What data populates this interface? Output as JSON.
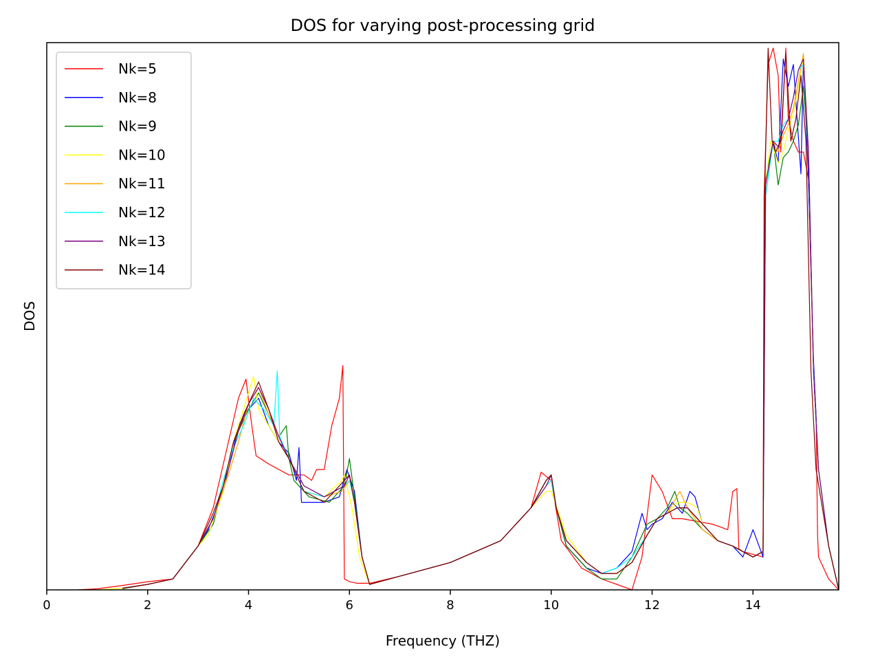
{
  "chart_data": {
    "type": "line",
    "title": "DOS for varying post-processing grid",
    "xlabel": "Frequency (THZ)",
    "ylabel": "DOS",
    "xlim": [
      0,
      15.7
    ],
    "ylim": [
      0,
      1.0
    ],
    "y_ticks_shown": false,
    "x_ticks": [
      {
        "value": 0,
        "label": "0"
      },
      {
        "value": 2,
        "label": "2"
      },
      {
        "value": 4,
        "label": "4"
      },
      {
        "value": 6,
        "label": "6"
      },
      {
        "value": 8,
        "label": "8"
      },
      {
        "value": 10,
        "label": "10"
      },
      {
        "value": 12,
        "label": "12"
      },
      {
        "value": 14,
        "label": "14"
      }
    ],
    "legend_position": "upper-left",
    "series": [
      {
        "name": "Nk=5",
        "color": "#ff0000",
        "x": [
          0.6,
          1.0,
          1.5,
          2.0,
          2.5,
          3.0,
          3.3,
          3.6,
          3.8,
          3.95,
          4.05,
          4.15,
          4.4,
          4.8,
          5.1,
          5.25,
          5.35,
          5.5,
          5.65,
          5.8,
          5.87,
          5.9,
          6.0,
          6.15,
          6.4,
          7.0,
          8.0,
          9.0,
          9.6,
          9.8,
          10.0,
          10.2,
          10.6,
          11.0,
          11.3,
          11.6,
          11.8,
          12.0,
          12.2,
          12.4,
          12.6,
          12.9,
          13.2,
          13.5,
          13.6,
          13.68,
          13.72,
          13.8,
          14.0,
          14.2,
          14.22,
          14.3,
          14.4,
          14.5,
          14.55,
          14.65,
          14.7,
          14.8,
          14.9,
          15.0,
          15.1,
          15.2,
          15.25,
          15.28,
          15.3,
          15.5,
          15.7
        ],
        "y": [
          0.0,
          0.002,
          0.008,
          0.015,
          0.02,
          0.08,
          0.15,
          0.27,
          0.35,
          0.385,
          0.31,
          0.245,
          0.23,
          0.21,
          0.21,
          0.2,
          0.22,
          0.22,
          0.3,
          0.35,
          0.41,
          0.02,
          0.015,
          0.012,
          0.012,
          0.025,
          0.05,
          0.09,
          0.15,
          0.215,
          0.2,
          0.09,
          0.04,
          0.02,
          0.01,
          0.0,
          0.06,
          0.21,
          0.18,
          0.13,
          0.13,
          0.125,
          0.12,
          0.11,
          0.18,
          0.185,
          0.075,
          0.07,
          0.065,
          0.06,
          0.72,
          0.96,
          0.99,
          0.94,
          0.8,
          0.99,
          0.86,
          0.82,
          0.8,
          0.8,
          0.75,
          0.4,
          0.32,
          0.1,
          0.06,
          0.02,
          0.0
        ]
      },
      {
        "name": "Nk=8",
        "color": "#0000ff",
        "x": [
          1.5,
          2.0,
          2.5,
          3.0,
          3.2,
          3.5,
          3.7,
          3.8,
          4.0,
          4.2,
          4.4,
          4.6,
          4.8,
          4.95,
          5.0,
          5.05,
          5.2,
          5.5,
          5.8,
          5.95,
          6.1,
          6.25,
          6.4,
          7.0,
          8.0,
          9.0,
          9.6,
          9.9,
          10.0,
          10.1,
          10.3,
          10.7,
          11.0,
          11.3,
          11.6,
          11.8,
          11.9,
          12.0,
          12.2,
          12.4,
          12.6,
          12.75,
          12.85,
          13.0,
          13.3,
          13.6,
          13.8,
          14.0,
          14.2,
          14.25,
          14.4,
          14.5,
          14.6,
          14.7,
          14.8,
          14.95,
          15.0,
          15.1,
          15.2,
          15.3,
          15.5,
          15.7
        ],
        "y": [
          0.003,
          0.01,
          0.02,
          0.08,
          0.11,
          0.18,
          0.26,
          0.3,
          0.33,
          0.35,
          0.3,
          0.27,
          0.25,
          0.2,
          0.26,
          0.16,
          0.16,
          0.16,
          0.17,
          0.22,
          0.18,
          0.06,
          0.01,
          0.025,
          0.05,
          0.09,
          0.15,
          0.2,
          0.21,
          0.15,
          0.08,
          0.04,
          0.03,
          0.04,
          0.07,
          0.14,
          0.11,
          0.12,
          0.13,
          0.16,
          0.14,
          0.18,
          0.17,
          0.12,
          0.09,
          0.08,
          0.06,
          0.11,
          0.06,
          0.72,
          0.82,
          0.78,
          0.97,
          0.92,
          0.96,
          0.76,
          0.97,
          0.75,
          0.42,
          0.22,
          0.08,
          0.0
        ]
      },
      {
        "name": "Nk=9",
        "color": "#008000",
        "x": [
          1.5,
          2.0,
          2.5,
          3.0,
          3.3,
          3.5,
          3.7,
          4.0,
          4.2,
          4.4,
          4.6,
          4.75,
          4.8,
          4.9,
          5.2,
          5.6,
          5.9,
          6.0,
          6.1,
          6.25,
          6.4,
          7.0,
          8.0,
          9.0,
          9.6,
          9.9,
          10.0,
          10.1,
          10.3,
          10.7,
          11.0,
          11.3,
          11.6,
          11.9,
          12.1,
          12.3,
          12.45,
          12.55,
          12.7,
          13.0,
          13.3,
          13.6,
          13.8,
          14.0,
          14.2,
          14.25,
          14.4,
          14.5,
          14.6,
          14.7,
          14.8,
          14.9,
          15.0,
          15.1,
          15.2,
          15.3,
          15.5,
          15.7
        ],
        "y": [
          0.002,
          0.01,
          0.02,
          0.08,
          0.12,
          0.19,
          0.27,
          0.33,
          0.36,
          0.32,
          0.28,
          0.3,
          0.24,
          0.2,
          0.17,
          0.16,
          0.19,
          0.24,
          0.17,
          0.06,
          0.01,
          0.025,
          0.05,
          0.09,
          0.15,
          0.2,
          0.21,
          0.15,
          0.08,
          0.04,
          0.02,
          0.02,
          0.06,
          0.12,
          0.13,
          0.15,
          0.18,
          0.15,
          0.14,
          0.11,
          0.09,
          0.08,
          0.07,
          0.06,
          0.07,
          0.75,
          0.82,
          0.74,
          0.79,
          0.8,
          0.82,
          0.85,
          0.92,
          0.8,
          0.4,
          0.22,
          0.08,
          0.0
        ]
      },
      {
        "name": "Nk=10",
        "color": "#ffff00",
        "x": [
          1.0,
          1.5,
          2.0,
          2.5,
          3.0,
          3.2,
          3.5,
          3.7,
          4.0,
          4.1,
          4.2,
          4.4,
          4.6,
          4.8,
          5.1,
          5.5,
          5.85,
          5.9,
          6.05,
          6.2,
          6.4,
          7.0,
          8.0,
          9.0,
          9.6,
          9.9,
          10.0,
          10.15,
          10.3,
          10.7,
          11.0,
          11.3,
          11.6,
          11.9,
          12.1,
          12.3,
          12.5,
          12.7,
          12.9,
          13.0,
          13.3,
          13.6,
          13.8,
          14.0,
          14.2,
          14.25,
          14.35,
          14.5,
          14.6,
          14.7,
          14.8,
          14.9,
          15.0,
          15.1,
          15.2,
          15.3,
          15.5,
          15.7
        ],
        "y": [
          0.0,
          0.003,
          0.01,
          0.02,
          0.08,
          0.1,
          0.18,
          0.27,
          0.36,
          0.39,
          0.33,
          0.3,
          0.27,
          0.24,
          0.18,
          0.17,
          0.2,
          0.21,
          0.15,
          0.06,
          0.01,
          0.025,
          0.05,
          0.09,
          0.15,
          0.18,
          0.18,
          0.14,
          0.1,
          0.05,
          0.03,
          0.03,
          0.05,
          0.1,
          0.13,
          0.14,
          0.16,
          0.16,
          0.15,
          0.12,
          0.09,
          0.08,
          0.07,
          0.06,
          0.07,
          0.74,
          0.82,
          0.78,
          0.8,
          0.84,
          0.87,
          0.92,
          0.97,
          0.8,
          0.4,
          0.22,
          0.08,
          0.0
        ]
      },
      {
        "name": "Nk=11",
        "color": "#ffa500",
        "x": [
          1.5,
          2.0,
          2.5,
          3.0,
          3.3,
          3.45,
          3.6,
          3.8,
          4.0,
          4.2,
          4.4,
          4.6,
          4.8,
          5.1,
          5.5,
          5.85,
          6.0,
          6.1,
          6.25,
          6.4,
          7.0,
          8.0,
          9.0,
          9.6,
          9.9,
          10.0,
          10.1,
          10.3,
          10.7,
          11.0,
          11.3,
          11.6,
          11.9,
          12.1,
          12.3,
          12.55,
          12.7,
          13.0,
          13.3,
          13.6,
          13.8,
          14.0,
          14.2,
          14.25,
          14.4,
          14.5,
          14.6,
          14.7,
          14.8,
          14.9,
          15.0,
          15.1,
          15.2,
          15.3,
          15.5,
          15.7
        ],
        "y": [
          0.003,
          0.01,
          0.02,
          0.08,
          0.13,
          0.17,
          0.21,
          0.27,
          0.34,
          0.37,
          0.32,
          0.28,
          0.24,
          0.18,
          0.17,
          0.18,
          0.2,
          0.16,
          0.06,
          0.01,
          0.025,
          0.05,
          0.09,
          0.15,
          0.19,
          0.2,
          0.15,
          0.09,
          0.05,
          0.03,
          0.03,
          0.05,
          0.1,
          0.13,
          0.14,
          0.18,
          0.15,
          0.11,
          0.09,
          0.08,
          0.07,
          0.06,
          0.07,
          0.74,
          0.82,
          0.8,
          0.83,
          0.85,
          0.88,
          0.93,
          0.98,
          0.8,
          0.4,
          0.22,
          0.08,
          0.0
        ]
      },
      {
        "name": "Nk=12",
        "color": "#00ffff",
        "x": [
          1.5,
          2.0,
          2.5,
          3.0,
          3.3,
          3.5,
          3.7,
          3.9,
          4.1,
          4.3,
          4.5,
          4.57,
          4.62,
          4.8,
          5.1,
          5.5,
          5.9,
          6.0,
          6.1,
          6.25,
          6.4,
          7.0,
          8.0,
          9.0,
          9.6,
          9.9,
          10.0,
          10.1,
          10.3,
          10.7,
          11.0,
          11.3,
          11.6,
          11.9,
          12.1,
          12.3,
          12.5,
          12.7,
          13.0,
          13.3,
          13.6,
          13.8,
          14.0,
          14.2,
          14.25,
          14.4,
          14.5,
          14.6,
          14.7,
          14.8,
          14.9,
          15.0,
          15.1,
          15.2,
          15.3,
          15.5,
          15.7
        ],
        "y": [
          0.003,
          0.01,
          0.02,
          0.08,
          0.13,
          0.2,
          0.26,
          0.3,
          0.35,
          0.33,
          0.3,
          0.4,
          0.28,
          0.24,
          0.18,
          0.17,
          0.19,
          0.2,
          0.16,
          0.06,
          0.01,
          0.025,
          0.05,
          0.09,
          0.15,
          0.19,
          0.2,
          0.15,
          0.09,
          0.05,
          0.03,
          0.04,
          0.06,
          0.1,
          0.13,
          0.14,
          0.15,
          0.15,
          0.12,
          0.09,
          0.08,
          0.07,
          0.06,
          0.07,
          0.72,
          0.82,
          0.82,
          0.85,
          0.86,
          0.9,
          0.95,
          0.96,
          0.8,
          0.4,
          0.22,
          0.08,
          0.0
        ]
      },
      {
        "name": "Nk=13",
        "color": "#800080",
        "x": [
          1.5,
          2.0,
          2.5,
          3.0,
          3.3,
          3.6,
          3.8,
          4.0,
          4.2,
          4.4,
          4.6,
          4.8,
          5.1,
          5.5,
          5.9,
          6.0,
          6.1,
          6.25,
          6.4,
          7.0,
          8.0,
          9.0,
          9.6,
          9.9,
          10.0,
          10.1,
          10.3,
          10.7,
          11.0,
          11.3,
          11.6,
          11.9,
          12.1,
          12.3,
          12.5,
          12.7,
          13.0,
          13.3,
          13.6,
          13.8,
          14.0,
          14.2,
          14.25,
          14.4,
          14.5,
          14.6,
          14.7,
          14.8,
          14.9,
          15.0,
          15.1,
          15.2,
          15.3,
          15.5,
          15.7
        ],
        "y": [
          0.003,
          0.01,
          0.02,
          0.08,
          0.13,
          0.22,
          0.29,
          0.34,
          0.37,
          0.33,
          0.28,
          0.24,
          0.19,
          0.17,
          0.19,
          0.21,
          0.16,
          0.06,
          0.01,
          0.025,
          0.05,
          0.09,
          0.15,
          0.19,
          0.21,
          0.15,
          0.09,
          0.05,
          0.03,
          0.03,
          0.05,
          0.1,
          0.13,
          0.14,
          0.15,
          0.15,
          0.12,
          0.09,
          0.08,
          0.07,
          0.06,
          0.07,
          0.74,
          0.82,
          0.81,
          0.84,
          0.86,
          0.9,
          0.95,
          0.97,
          0.8,
          0.4,
          0.22,
          0.08,
          0.0
        ]
      },
      {
        "name": "Nk=14",
        "color": "#800000",
        "x": [
          1.5,
          2.0,
          2.5,
          3.0,
          3.3,
          3.5,
          3.7,
          3.9,
          4.05,
          4.2,
          4.4,
          4.6,
          4.8,
          5.1,
          5.5,
          5.9,
          6.0,
          6.1,
          6.25,
          6.4,
          7.0,
          8.0,
          9.0,
          9.6,
          9.9,
          10.0,
          10.1,
          10.3,
          10.7,
          11.0,
          11.3,
          11.6,
          11.9,
          12.1,
          12.3,
          12.5,
          12.7,
          13.0,
          13.3,
          13.6,
          13.8,
          14.0,
          14.2,
          14.23,
          14.3,
          14.38,
          14.45,
          14.55,
          14.65,
          14.75,
          14.85,
          14.95,
          15.05,
          15.15,
          15.25,
          15.5,
          15.7
        ],
        "y": [
          0.003,
          0.01,
          0.02,
          0.08,
          0.14,
          0.19,
          0.27,
          0.32,
          0.35,
          0.38,
          0.33,
          0.27,
          0.24,
          0.18,
          0.16,
          0.2,
          0.21,
          0.16,
          0.06,
          0.01,
          0.025,
          0.05,
          0.09,
          0.15,
          0.2,
          0.21,
          0.15,
          0.09,
          0.05,
          0.03,
          0.03,
          0.05,
          0.1,
          0.13,
          0.14,
          0.15,
          0.15,
          0.12,
          0.09,
          0.08,
          0.07,
          0.06,
          0.07,
          0.72,
          0.99,
          0.82,
          0.8,
          0.82,
          0.98,
          0.82,
          0.86,
          0.94,
          0.82,
          0.4,
          0.22,
          0.08,
          0.0
        ]
      }
    ]
  }
}
